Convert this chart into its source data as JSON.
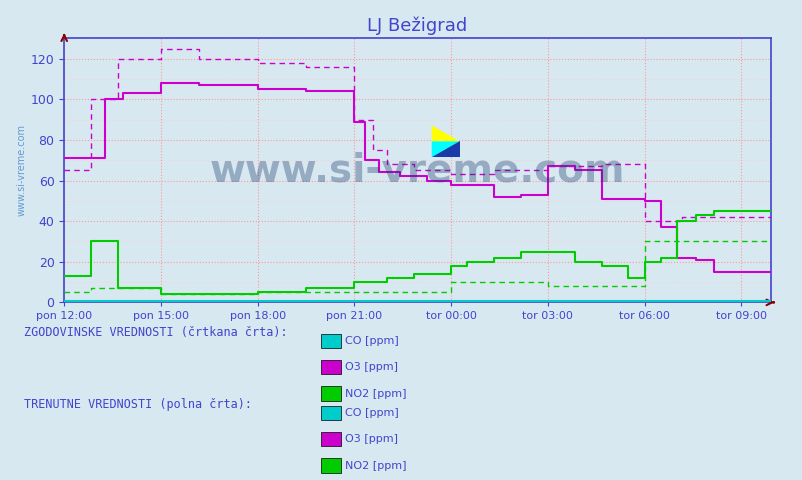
{
  "title": "LJ Bežigrad",
  "title_color": "#4444cc",
  "bg_color": "#d8e8f0",
  "plot_bg_color": "#d8e8f0",
  "grid_color_major": "#ff9999",
  "grid_color_minor": "#ffcccc",
  "axis_color": "#4444cc",
  "tick_color": "#4444cc",
  "text_color": "#4444cc",
  "watermark_color": "#1a3a6e",
  "ylabel_watermark": "www.si-vreme.com",
  "x_ticks_labels": [
    "pon 12:00",
    "pon 15:00",
    "pon 18:00",
    "pon 21:00",
    "tor 00:00",
    "tor 03:00",
    "tor 06:00",
    "tor 09:00"
  ],
  "x_ticks_pos": [
    0,
    36,
    72,
    108,
    144,
    180,
    216,
    252
  ],
  "ylim": [
    0,
    130
  ],
  "yticks": [
    0,
    20,
    40,
    60,
    80,
    100,
    120
  ],
  "total_points": 264,
  "colors": {
    "CO_hist": "#00cccc",
    "CO_curr": "#00cccc",
    "O3_hist": "#cc00cc",
    "O3_curr": "#cc00cc",
    "NO2_hist": "#00cc00",
    "NO2_curr": "#00cc00"
  },
  "legend_text_color": "#4444cc",
  "legend_font_size": 9,
  "bottom_label1": "ZGODOVINSKE VREDNOSTI (črtkana črta):",
  "bottom_label2": "TRENUTNE VREDNOSTI (polna črta):",
  "hist_dashes": [
    4,
    3
  ],
  "curr_lw": 1.5,
  "hist_lw": 1.0
}
